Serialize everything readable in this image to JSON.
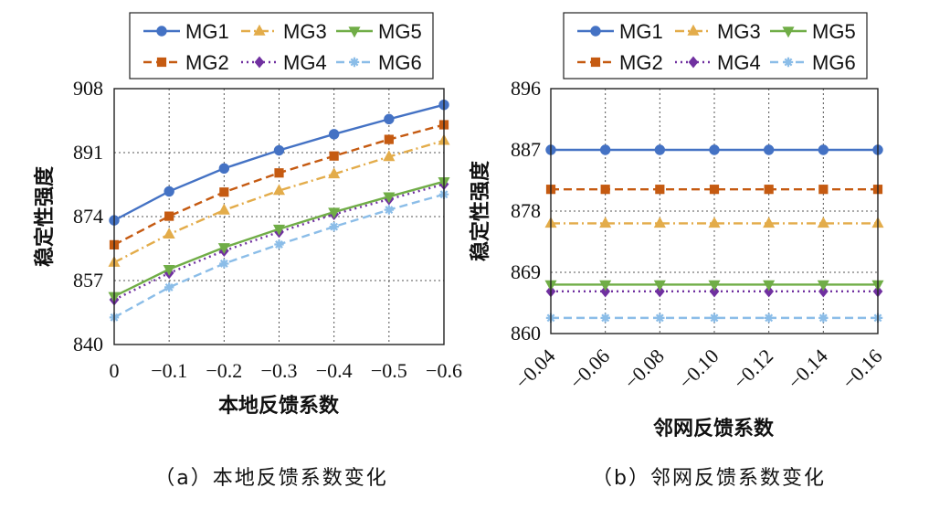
{
  "chart_data": [
    {
      "type": "line",
      "caption": "（a）本地反馈系数变化",
      "xlabel": "本地反馈系数",
      "ylabel": "稳定性强度",
      "x": [
        0,
        -0.1,
        -0.2,
        -0.3,
        -0.4,
        -0.5,
        -0.6
      ],
      "x_tick_labels": [
        "0",
        "−0.1",
        "−0.2",
        "−0.3",
        "−0.4",
        "−0.5",
        "−0.6"
      ],
      "ylim": [
        840,
        908
      ],
      "y_ticks": [
        840,
        857,
        874,
        891,
        908
      ],
      "grid": true,
      "legend_position": "top",
      "series": [
        {
          "name": "MG1",
          "color": "#4472c4",
          "dash": "solid",
          "marker": "circle",
          "values": [
            873.0,
            880.7,
            886.8,
            891.6,
            895.9,
            899.9,
            903.7
          ]
        },
        {
          "name": "MG2",
          "color": "#c55a11",
          "dash": "dashed",
          "marker": "square",
          "values": [
            866.5,
            874.1,
            880.5,
            885.6,
            890.1,
            894.5,
            898.4
          ]
        },
        {
          "name": "MG3",
          "color": "#e3ac4a",
          "dash": "dashdot",
          "marker": "triangle",
          "values": [
            861.8,
            869.3,
            875.7,
            880.9,
            885.3,
            889.9,
            894.2
          ]
        },
        {
          "name": "MG4",
          "color": "#7030a0",
          "dash": "dotted",
          "marker": "diamond",
          "values": [
            851.9,
            859.0,
            864.9,
            869.9,
            874.6,
            878.6,
            882.6
          ]
        },
        {
          "name": "MG5",
          "color": "#70ad47",
          "dash": "solid",
          "marker": "triangle-down",
          "values": [
            852.8,
            860.0,
            865.8,
            870.7,
            875.2,
            879.3,
            883.3
          ]
        },
        {
          "name": "MG6",
          "color": "#8bbde8",
          "dash": "dashed",
          "marker": "star",
          "values": [
            847.2,
            855.2,
            861.5,
            866.6,
            871.3,
            875.8,
            879.9
          ]
        }
      ]
    },
    {
      "type": "line",
      "caption": "（b）邻网反馈系数变化",
      "xlabel": "邻网反馈系数",
      "ylabel": "稳定性强度",
      "x": [
        -0.04,
        -0.06,
        -0.08,
        -0.1,
        -0.12,
        -0.14,
        -0.16
      ],
      "x_tick_labels": [
        "−0.04",
        "−0.06",
        "−0.08",
        "−0.10",
        "−0.12",
        "−0.14",
        "−0.16"
      ],
      "ylim": [
        860,
        896
      ],
      "y_ticks": [
        860,
        869,
        878,
        887,
        896
      ],
      "grid": true,
      "legend_position": "top",
      "series": [
        {
          "name": "MG1",
          "color": "#4472c4",
          "dash": "solid",
          "marker": "circle",
          "values": [
            887.0,
            887.0,
            887.0,
            887.0,
            887.0,
            887.0,
            887.0
          ]
        },
        {
          "name": "MG2",
          "color": "#c55a11",
          "dash": "dashed",
          "marker": "square",
          "values": [
            881.2,
            881.2,
            881.2,
            881.2,
            881.2,
            881.2,
            881.2
          ]
        },
        {
          "name": "MG3",
          "color": "#e3ac4a",
          "dash": "dashdot",
          "marker": "triangle",
          "values": [
            876.2,
            876.2,
            876.2,
            876.2,
            876.2,
            876.2,
            876.2
          ]
        },
        {
          "name": "MG4",
          "color": "#7030a0",
          "dash": "dotted",
          "marker": "diamond",
          "values": [
            866.2,
            866.2,
            866.2,
            866.2,
            866.2,
            866.2,
            866.2
          ]
        },
        {
          "name": "MG5",
          "color": "#70ad47",
          "dash": "solid",
          "marker": "triangle-down",
          "values": [
            867.2,
            867.2,
            867.2,
            867.2,
            867.2,
            867.2,
            867.2
          ]
        },
        {
          "name": "MG6",
          "color": "#8bbde8",
          "dash": "dashed",
          "marker": "star",
          "values": [
            862.3,
            862.3,
            862.3,
            862.3,
            862.3,
            862.3,
            862.3
          ]
        }
      ]
    }
  ],
  "legend_order": [
    "MG1",
    "MG3",
    "MG5",
    "MG2",
    "MG4",
    "MG6"
  ]
}
